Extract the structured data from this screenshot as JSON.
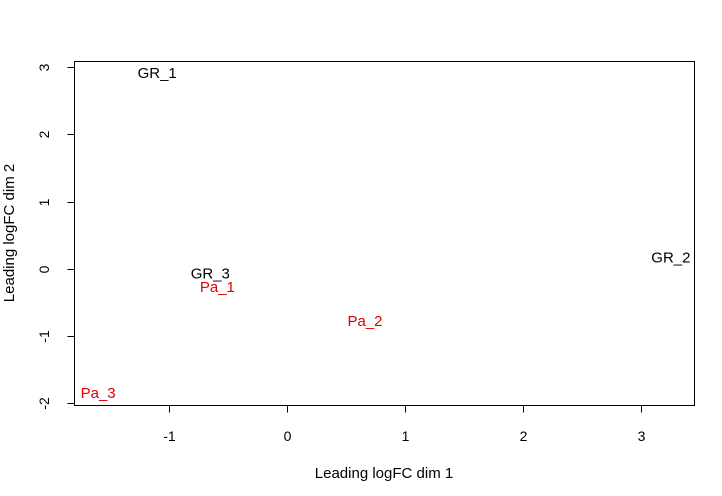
{
  "chart_data": {
    "type": "scatter",
    "title": "",
    "xlabel": "Leading logFC dim 1",
    "ylabel": "Leading logFC dim 2",
    "xlim": [
      -1.8,
      3.45
    ],
    "ylim": [
      -2.03,
      3.08
    ],
    "xticks": [
      -1,
      0,
      1,
      2,
      3
    ],
    "yticks": [
      -2,
      -1,
      0,
      1,
      2,
      3
    ],
    "xtick_labels": [
      "-1",
      "0",
      "1",
      "2",
      "3"
    ],
    "ytick_labels": [
      "-2",
      "-1",
      "0",
      "1",
      "2",
      "3"
    ],
    "grid": false,
    "points": [
      {
        "label": "GR_1",
        "x": -1.1,
        "y": 2.9,
        "color": "#000000"
      },
      {
        "label": "GR_2",
        "x": 3.25,
        "y": 0.16,
        "color": "#000000"
      },
      {
        "label": "GR_3",
        "x": -0.65,
        "y": -0.08,
        "color": "#000000"
      },
      {
        "label": "Pa_1",
        "x": -0.59,
        "y": -0.28,
        "color": "#DF0000"
      },
      {
        "label": "Pa_2",
        "x": 0.66,
        "y": -0.78,
        "color": "#DF0000"
      },
      {
        "label": "Pa_3",
        "x": -1.6,
        "y": -1.85,
        "color": "#DF0000"
      }
    ]
  }
}
